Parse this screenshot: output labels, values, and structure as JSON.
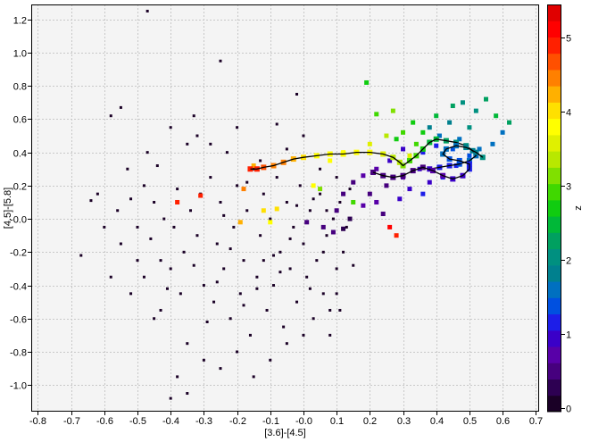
{
  "chart_data": {
    "type": "scatter",
    "xlabel": "[3.6]-[4.5]",
    "ylabel": "[4.5]-[5.8]",
    "colorbar_label": "z",
    "xlim": [
      -0.82,
      0.71
    ],
    "ylim": [
      -1.16,
      1.29
    ],
    "zlim": [
      -0.05,
      5.45
    ],
    "grid": true,
    "x_ticks": [
      -0.8,
      -0.7,
      -0.6,
      -0.5,
      -0.4,
      -0.3,
      -0.2,
      -0.1,
      -0.0,
      0.1,
      0.2,
      0.3,
      0.4,
      0.5,
      0.6,
      0.7
    ],
    "y_ticks": [
      1.2,
      1.0,
      0.8,
      0.6,
      0.4,
      0.2,
      -0.0,
      -0.2,
      -0.4,
      -0.6,
      -0.8,
      -1.0
    ],
    "x_tick_labels": [
      "-0.8",
      "-0.7",
      "-0.6",
      "-0.5",
      "-0.4",
      "-0.3",
      "-0.2",
      "-0.1",
      "-0.0",
      "0.1",
      "0.2",
      "0.3",
      "0.4",
      "0.5",
      "0.6",
      "0.7"
    ],
    "y_tick_labels": [
      "1.2",
      "1.0",
      "0.8",
      "0.6",
      "0.4",
      "0.2",
      "-0.0",
      "-0.2",
      "-0.4",
      "-0.6",
      "-0.8",
      "-1.0"
    ],
    "colorbar_ticks": [
      0,
      1,
      2,
      3,
      4,
      5
    ],
    "colorbar_tick_labels": [
      "0",
      "1",
      "2",
      "3",
      "4",
      "5"
    ],
    "colorbar_colors": [
      "#1a0026",
      "#2d0052",
      "#46007e",
      "#5800a8",
      "#3a00c8",
      "#1d1ee8",
      "#0050e0",
      "#0070c0",
      "#00808e",
      "#009080",
      "#00a060",
      "#00b838",
      "#10cc10",
      "#40d800",
      "#80e000",
      "#b8e800",
      "#e0f000",
      "#ffff00",
      "#ffe000",
      "#ffb000",
      "#ff8000",
      "#ff5000",
      "#ff2000",
      "#ff0000",
      "#e00000"
    ],
    "field_points": {
      "note_color": "#1a0026",
      "points": [
        [
          -0.47,
          1.25
        ],
        [
          -0.25,
          0.95
        ],
        [
          -0.02,
          0.75
        ],
        [
          -0.55,
          0.67
        ],
        [
          -0.58,
          0.62
        ],
        [
          -0.33,
          0.62
        ],
        [
          -0.08,
          0.57
        ],
        [
          -0.67,
          -0.22
        ],
        [
          -0.62,
          0.15
        ],
        [
          -0.64,
          0.11
        ],
        [
          -0.56,
          0.05
        ],
        [
          -0.52,
          0.12
        ],
        [
          -0.5,
          -0.05
        ],
        [
          -0.48,
          0.2
        ],
        [
          -0.46,
          -0.12
        ],
        [
          -0.44,
          0.32
        ],
        [
          -0.42,
          0.0
        ],
        [
          -0.4,
          -0.3
        ],
        [
          -0.38,
          0.18
        ],
        [
          -0.36,
          -0.2
        ],
        [
          -0.35,
          0.45
        ],
        [
          -0.34,
          0.05
        ],
        [
          -0.32,
          -0.1
        ],
        [
          -0.3,
          -0.4
        ],
        [
          -0.28,
          0.25
        ],
        [
          -0.27,
          -0.5
        ],
        [
          -0.26,
          -0.15
        ],
        [
          -0.25,
          0.1
        ],
        [
          -0.24,
          -0.3
        ],
        [
          -0.23,
          0.4
        ],
        [
          -0.22,
          -0.6
        ],
        [
          -0.21,
          -0.05
        ],
        [
          -0.2,
          0.2
        ],
        [
          -0.19,
          -0.45
        ],
        [
          -0.18,
          -0.25
        ],
        [
          -0.17,
          0.05
        ],
        [
          -0.16,
          -0.7
        ],
        [
          -0.15,
          0.3
        ],
        [
          -0.14,
          -0.35
        ],
        [
          -0.13,
          -0.1
        ],
        [
          -0.12,
          0.15
        ],
        [
          -0.11,
          -0.55
        ],
        [
          -0.1,
          0.0
        ],
        [
          -0.09,
          -0.4
        ],
        [
          -0.08,
          0.25
        ],
        [
          -0.07,
          -0.2
        ],
        [
          -0.06,
          -0.65
        ],
        [
          -0.05,
          0.1
        ],
        [
          -0.04,
          -0.3
        ],
        [
          -0.03,
          -0.05
        ],
        [
          -0.02,
          -0.5
        ],
        [
          -0.01,
          0.2
        ],
        [
          0.0,
          -0.15
        ],
        [
          0.01,
          -0.35
        ],
        [
          0.02,
          0.05
        ],
        [
          0.03,
          -0.6
        ],
        [
          0.04,
          -0.25
        ],
        [
          0.05,
          0.15
        ],
        [
          0.06,
          -0.45
        ],
        [
          0.07,
          -0.1
        ],
        [
          0.08,
          -0.7
        ],
        [
          0.09,
          0.0
        ],
        [
          0.1,
          -0.3
        ],
        [
          0.11,
          -0.55
        ],
        [
          0.12,
          -0.2
        ],
        [
          0.08,
          -0.55
        ],
        [
          -0.45,
          -0.6
        ],
        [
          -0.52,
          -0.45
        ],
        [
          -0.35,
          -0.75
        ],
        [
          -0.3,
          -0.85
        ],
        [
          -0.25,
          -0.9
        ],
        [
          -0.2,
          -0.8
        ],
        [
          -0.15,
          -0.95
        ],
        [
          -0.1,
          -0.85
        ],
        [
          -0.05,
          -0.75
        ],
        [
          0.0,
          -0.7
        ],
        [
          -0.38,
          -0.95
        ],
        [
          -0.4,
          -1.08
        ],
        [
          -0.35,
          -1.05
        ],
        [
          -0.43,
          -0.55
        ],
        [
          -0.48,
          -0.35
        ],
        [
          -0.5,
          -0.25
        ],
        [
          -0.47,
          0.4
        ],
        [
          -0.4,
          0.55
        ],
        [
          -0.32,
          0.5
        ],
        [
          -0.28,
          0.45
        ],
        [
          -0.2,
          0.55
        ],
        [
          -0.13,
          0.35
        ],
        [
          -0.05,
          0.42
        ],
        [
          0.0,
          0.5
        ],
        [
          0.05,
          0.3
        ],
        [
          0.1,
          0.25
        ],
        [
          -0.58,
          -0.35
        ],
        [
          -0.55,
          -0.15
        ],
        [
          -0.6,
          -0.05
        ],
        [
          -0.53,
          0.3
        ],
        [
          -0.45,
          0.1
        ],
        [
          -0.37,
          -0.45
        ],
        [
          -0.33,
          -0.28
        ],
        [
          -0.29,
          -0.62
        ],
        [
          -0.26,
          -0.38
        ],
        [
          -0.22,
          -0.18
        ],
        [
          -0.18,
          -0.52
        ],
        [
          -0.14,
          -0.42
        ],
        [
          -0.09,
          -0.22
        ],
        [
          -0.04,
          -0.12
        ],
        [
          0.02,
          -0.42
        ],
        [
          0.06,
          -0.2
        ],
        [
          0.1,
          -0.45
        ],
        [
          0.13,
          -0.05
        ],
        [
          0.15,
          -0.28
        ],
        [
          -0.43,
          -0.25
        ],
        [
          -0.41,
          -0.42
        ],
        [
          -0.39,
          -0.05
        ],
        [
          -0.31,
          0.15
        ],
        [
          -0.24,
          0.02
        ],
        [
          -0.17,
          0.22
        ],
        [
          -0.12,
          -0.25
        ],
        [
          -0.07,
          -0.32
        ],
        [
          -0.02,
          0.08
        ],
        [
          0.03,
          0.12
        ],
        [
          0.07,
          0.05
        ],
        [
          0.11,
          0.1
        ],
        [
          0.14,
          0.18
        ]
      ]
    },
    "colored_points": [
      [
        -0.38,
        0.1,
        4.9
      ],
      [
        -0.31,
        0.14,
        4.8
      ],
      [
        -0.18,
        0.18,
        4.4
      ],
      [
        -0.15,
        0.32,
        4.3
      ],
      [
        -0.12,
        0.05,
        4.1
      ],
      [
        -0.08,
        0.06,
        4.0
      ],
      [
        0.03,
        0.2,
        3.8
      ],
      [
        0.08,
        0.35,
        3.9
      ],
      [
        0.12,
        0.4,
        3.7
      ],
      [
        0.2,
        0.45,
        3.5
      ],
      [
        0.25,
        0.5,
        3.4
      ],
      [
        0.3,
        0.52,
        3.0
      ],
      [
        0.33,
        0.58,
        2.8
      ],
      [
        0.36,
        0.52,
        2.6
      ],
      [
        0.4,
        0.62,
        2.4
      ],
      [
        0.45,
        0.68,
        2.2
      ],
      [
        0.48,
        0.7,
        2.0
      ],
      [
        0.52,
        0.65,
        2.1
      ],
      [
        0.55,
        0.72,
        2.3
      ],
      [
        0.58,
        0.62,
        2.5
      ],
      [
        0.62,
        0.58,
        2.2
      ],
      [
        0.5,
        0.55,
        2.0
      ],
      [
        0.44,
        0.58,
        1.9
      ],
      [
        0.38,
        0.55,
        1.8
      ],
      [
        0.41,
        0.5,
        1.7
      ],
      [
        0.47,
        0.48,
        1.6
      ],
      [
        0.53,
        0.42,
        1.5
      ],
      [
        0.57,
        0.45,
        1.5
      ],
      [
        0.6,
        0.52,
        1.7
      ],
      [
        0.45,
        0.42,
        1.3
      ],
      [
        0.4,
        0.44,
        1.2
      ],
      [
        0.36,
        0.4,
        1.1
      ],
      [
        0.3,
        0.42,
        1.0
      ],
      [
        0.26,
        0.35,
        0.9
      ],
      [
        0.22,
        0.3,
        0.8
      ],
      [
        0.18,
        0.26,
        0.7
      ],
      [
        0.15,
        0.22,
        0.6
      ],
      [
        0.12,
        0.15,
        0.5
      ],
      [
        0.1,
        0.05,
        0.4
      ],
      [
        0.14,
        0.0,
        0.3
      ],
      [
        0.2,
        0.15,
        0.5
      ],
      [
        0.25,
        0.2,
        0.6
      ],
      [
        0.3,
        0.25,
        0.7
      ],
      [
        0.35,
        0.3,
        0.9
      ],
      [
        0.38,
        0.22,
        1.0
      ],
      [
        0.42,
        0.25,
        1.1
      ],
      [
        0.46,
        0.32,
        1.2
      ],
      [
        0.5,
        0.38,
        1.4
      ],
      [
        0.19,
        0.82,
        2.8
      ],
      [
        0.27,
        0.65,
        3.2
      ],
      [
        0.32,
        0.38,
        3.6
      ],
      [
        0.15,
        0.1,
        3.0
      ],
      [
        0.05,
        0.18,
        3.1
      ],
      [
        0.22,
        0.63,
        2.9
      ],
      [
        0.28,
        0.48,
        2.7
      ],
      [
        0.34,
        0.45,
        2.9
      ],
      [
        0.06,
        -0.05,
        0.4
      ],
      [
        0.01,
        -0.02,
        0.5
      ],
      [
        0.09,
        -0.08,
        0.6
      ],
      [
        0.12,
        -0.06,
        0.3
      ],
      [
        -0.1,
        -0.02,
        3.9
      ],
      [
        -0.19,
        -0.02,
        4.2
      ],
      [
        0.26,
        -0.05,
        5.2
      ],
      [
        0.28,
        -0.1,
        5.0
      ],
      [
        0.18,
        0.08,
        0.7
      ],
      [
        0.22,
        0.1,
        0.8
      ],
      [
        0.24,
        0.03,
        0.6
      ],
      [
        0.29,
        0.12,
        0.9
      ],
      [
        0.32,
        0.18,
        1.0
      ],
      [
        0.36,
        0.15,
        1.1
      ]
    ],
    "tracks": [
      {
        "name": "",
        "points": [
          [
            -0.16,
            0.3,
            5.0
          ],
          [
            -0.14,
            0.3,
            4.9
          ],
          [
            -0.12,
            0.31,
            4.7
          ],
          [
            -0.09,
            0.32,
            4.5
          ],
          [
            -0.06,
            0.34,
            4.4
          ],
          [
            -0.03,
            0.36,
            4.2
          ],
          [
            0.0,
            0.37,
            4.0
          ],
          [
            0.04,
            0.38,
            3.9
          ],
          [
            0.08,
            0.39,
            3.85
          ],
          [
            0.12,
            0.39,
            3.8
          ],
          [
            0.16,
            0.4,
            3.75
          ],
          [
            0.2,
            0.4,
            3.7
          ],
          [
            0.24,
            0.39,
            3.6
          ],
          [
            0.27,
            0.37,
            3.45
          ],
          [
            0.29,
            0.34,
            3.3
          ],
          [
            0.3,
            0.32,
            3.15
          ],
          [
            0.32,
            0.35,
            3.0
          ],
          [
            0.34,
            0.38,
            2.85
          ],
          [
            0.36,
            0.42,
            2.7
          ],
          [
            0.38,
            0.46,
            2.55
          ],
          [
            0.4,
            0.48,
            2.4
          ],
          [
            0.43,
            0.47,
            2.25
          ],
          [
            0.46,
            0.46,
            2.1
          ],
          [
            0.49,
            0.44,
            1.95
          ],
          [
            0.51,
            0.41,
            1.8
          ],
          [
            0.52,
            0.38,
            1.65
          ],
          [
            0.5,
            0.35,
            1.5
          ],
          [
            0.47,
            0.33,
            1.35
          ],
          [
            0.44,
            0.32,
            1.2
          ],
          [
            0.41,
            0.31,
            1.05
          ],
          [
            0.38,
            0.3,
            0.9
          ]
        ]
      },
      {
        "name": "",
        "points": [
          [
            0.21,
            0.28,
            0.6
          ],
          [
            0.24,
            0.26,
            0.55
          ],
          [
            0.27,
            0.25,
            0.5
          ],
          [
            0.3,
            0.26,
            0.5
          ],
          [
            0.33,
            0.29,
            0.55
          ],
          [
            0.36,
            0.31,
            0.6
          ],
          [
            0.39,
            0.29,
            0.7
          ],
          [
            0.42,
            0.26,
            0.8
          ],
          [
            0.45,
            0.24,
            0.9
          ],
          [
            0.48,
            0.26,
            1.0
          ],
          [
            0.5,
            0.3,
            1.1
          ],
          [
            0.5,
            0.33,
            1.2
          ],
          [
            0.47,
            0.35,
            1.3
          ],
          [
            0.44,
            0.36,
            1.4
          ],
          [
            0.42,
            0.39,
            1.5
          ],
          [
            0.43,
            0.42,
            1.6
          ],
          [
            0.46,
            0.44,
            1.7
          ],
          [
            0.49,
            0.43,
            1.8
          ],
          [
            0.52,
            0.4,
            1.9
          ],
          [
            0.54,
            0.37,
            2.0
          ]
        ]
      }
    ]
  }
}
